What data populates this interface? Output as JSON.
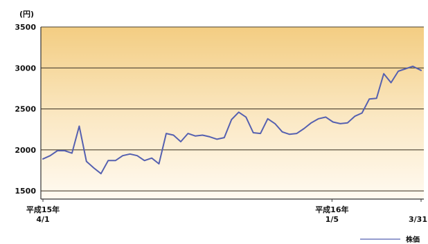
{
  "chart_data": {
    "type": "line",
    "title": "",
    "unit_label": "(円)",
    "ylim": [
      1400,
      3500
    ],
    "yticks": [
      1500,
      2000,
      2500,
      3000,
      3500
    ],
    "grid": true,
    "x_tick_labels": [
      {
        "date": "2003-04-01",
        "line1": "平成15年",
        "line2": "4/1"
      },
      {
        "date": "2004-01-05",
        "line1": "平成16年",
        "line2": "1/5"
      },
      {
        "date": "2004-03-31",
        "line1": "",
        "line2": "3/31"
      }
    ],
    "legend": {
      "position": "bottom-right"
    },
    "series": [
      {
        "name": "株価",
        "color": "#5560b0",
        "x": [
          "2003-04-01",
          "2003-04-08",
          "2003-04-15",
          "2003-04-22",
          "2003-04-29",
          "2003-05-06",
          "2003-05-13",
          "2003-05-20",
          "2003-05-27",
          "2003-06-03",
          "2003-06-10",
          "2003-06-17",
          "2003-06-24",
          "2003-07-01",
          "2003-07-08",
          "2003-07-15",
          "2003-07-22",
          "2003-07-29",
          "2003-08-05",
          "2003-08-12",
          "2003-08-19",
          "2003-08-26",
          "2003-09-02",
          "2003-09-09",
          "2003-09-16",
          "2003-09-23",
          "2003-09-30",
          "2003-10-07",
          "2003-10-14",
          "2003-10-21",
          "2003-10-28",
          "2003-11-04",
          "2003-11-11",
          "2003-11-18",
          "2003-11-25",
          "2003-12-02",
          "2003-12-09",
          "2003-12-16",
          "2003-12-23",
          "2003-12-30",
          "2004-01-06",
          "2004-01-13",
          "2004-01-20",
          "2004-01-27",
          "2004-02-03",
          "2004-02-10",
          "2004-02-17",
          "2004-02-24",
          "2004-03-02",
          "2004-03-09",
          "2004-03-16",
          "2004-03-23",
          "2004-03-31"
        ],
        "values": [
          1890,
          1930,
          1990,
          1990,
          1960,
          2290,
          1860,
          1780,
          1710,
          1870,
          1870,
          1930,
          1950,
          1930,
          1870,
          1900,
          1830,
          2200,
          2180,
          2100,
          2200,
          2170,
          2180,
          2160,
          2130,
          2150,
          2370,
          2460,
          2400,
          2210,
          2200,
          2380,
          2320,
          2220,
          2190,
          2200,
          2260,
          2330,
          2380,
          2400,
          2340,
          2320,
          2330,
          2410,
          2450,
          2620,
          2630,
          2930,
          2820,
          2960,
          2990,
          3020,
          2970
        ]
      }
    ]
  }
}
